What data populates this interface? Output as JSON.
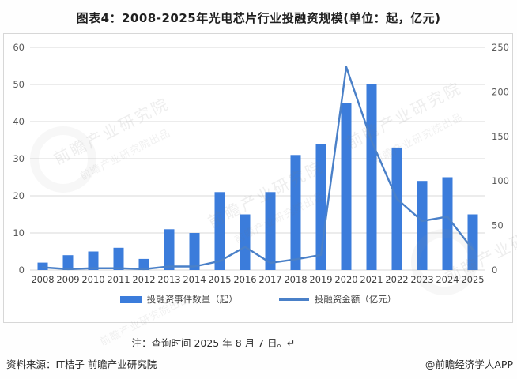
{
  "title": "图表4：2008-2025年光电芯片行业投融资规模(单位：起，亿元)",
  "note": "注：查询时间 2025 年 8 月 7 日。↵",
  "footer": {
    "source": "资料来源：IT桔子 前瞻产业研究院",
    "credit": "@前瞻经济学人APP"
  },
  "watermark_text": "前瞻产业研究院",
  "watermark_text_small": "前瞻产业研究院出品",
  "chart_data": {
    "type": "bar",
    "subtype": "bar+line combo",
    "title": "图表4：2008-2025年光电芯片行业投融资规模(单位：起，亿元)",
    "categories": [
      "2008",
      "2009",
      "2010",
      "2011",
      "2012",
      "2013",
      "2014",
      "2015",
      "2016",
      "2017",
      "2018",
      "2019",
      "2020",
      "2021",
      "2022",
      "2023",
      "2024",
      "2025"
    ],
    "series": [
      {
        "name": "投融资事件数量（起）",
        "type": "bar",
        "axis": "left",
        "color": "#3b7cdb",
        "values": [
          2,
          4,
          5,
          6,
          3,
          11,
          10,
          21,
          15,
          21,
          31,
          34,
          45,
          50,
          33,
          24,
          25,
          15
        ]
      },
      {
        "name": "投融资金额（亿元）",
        "type": "line",
        "axis": "right",
        "color": "#4a80c8",
        "values": [
          3,
          1,
          2,
          2,
          1,
          4,
          4,
          10,
          26,
          8,
          12,
          17,
          228,
          145,
          80,
          55,
          60,
          23
        ]
      }
    ],
    "left_axis": {
      "min": 0,
      "max": 60,
      "step": 10,
      "ticks": [
        0,
        10,
        20,
        30,
        40,
        50,
        60
      ]
    },
    "right_axis": {
      "min": 0,
      "max": 250,
      "step": 50,
      "ticks": [
        0,
        50,
        100,
        150,
        200,
        250
      ]
    },
    "grid": true,
    "gridline_color": "#d9d9d9",
    "legend_position": "bottom"
  }
}
